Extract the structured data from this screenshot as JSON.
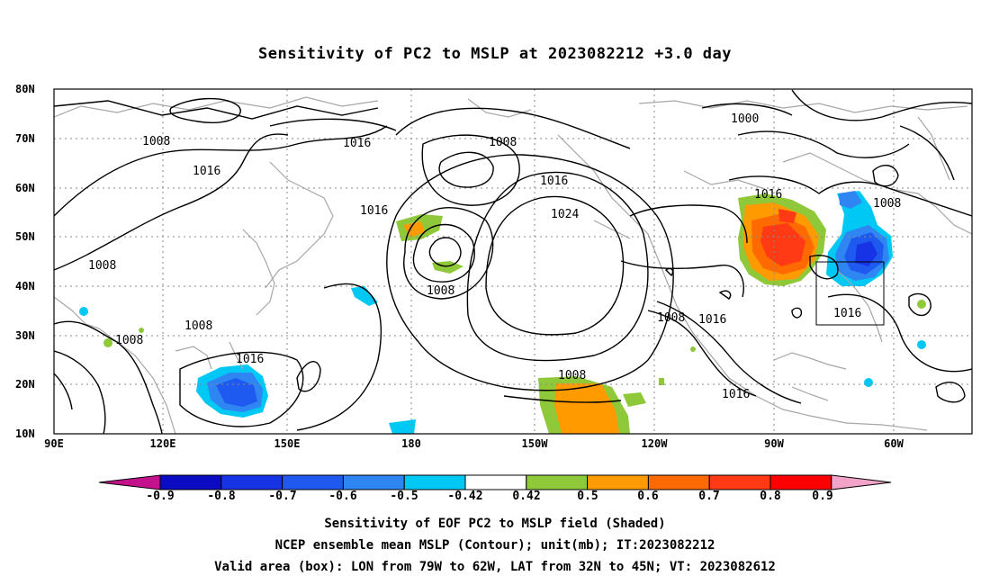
{
  "title": "Sensitivity of PC2 to MSLP at 2023082212 +3.0 day",
  "lat_labels": [
    "80N",
    "70N",
    "60N",
    "50N",
    "40N",
    "30N",
    "20N",
    "10N"
  ],
  "lon_labels": [
    "90E",
    "120E",
    "150E",
    "180",
    "150W",
    "120W",
    "90W",
    "60W"
  ],
  "contour_labels": [
    "1008",
    "1016",
    "1008",
    "1016",
    "1016",
    "1000",
    "1008",
    "1016",
    "1024",
    "1016",
    "1016",
    "1008",
    "1008",
    "1008",
    "1016",
    "1008",
    "1008",
    "1016",
    "1008",
    "1016",
    "1016"
  ],
  "colorbar": {
    "labels": [
      "-0.9",
      "-0.8",
      "-0.7",
      "-0.6",
      "-0.5",
      "-0.42",
      "0.42",
      "0.5",
      "0.6",
      "0.7",
      "0.8",
      "0.9"
    ],
    "colors": [
      "#0b0bc4",
      "#1733e6",
      "#1e5af0",
      "#2f86f2",
      "#00c8f5",
      "#ffffff",
      "#8fc93a",
      "#ff9a00",
      "#ff6a00",
      "#ff3a14",
      "#ff0000"
    ],
    "low_color": "#c4128c",
    "high_color": "#f2a3c8"
  },
  "valid_box": {
    "lon_from": "79W",
    "lon_to": "62W",
    "lat_from": "32N",
    "lat_to": "45N"
  },
  "captions": [
    "Sensitivity of EOF PC2 to MSLP field (Shaded)",
    "NCEP ensemble mean MSLP (Contour); unit(mb); IT:2023082212",
    "Valid area (box): LON from 79W to 62W, LAT from 32N to 45N; VT: 2023082612"
  ]
}
